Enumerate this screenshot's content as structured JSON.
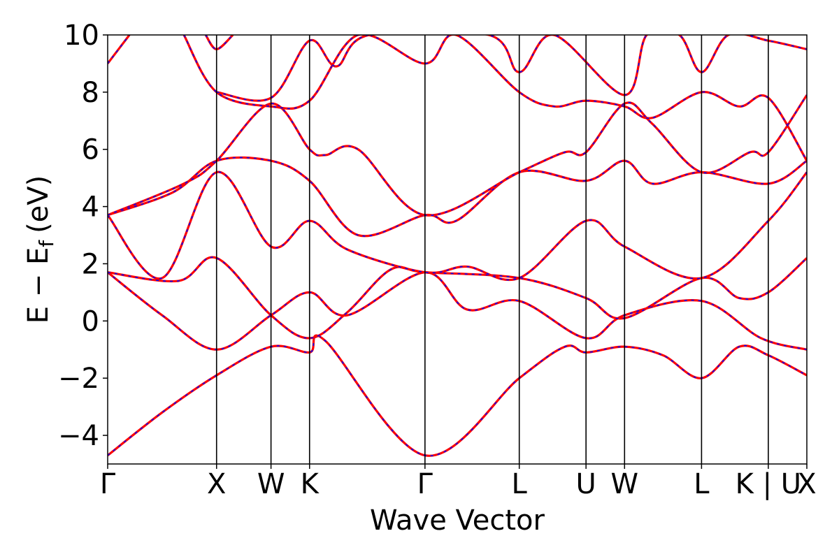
{
  "chart_data": {
    "type": "line",
    "xlabel": "Wave Vector",
    "ylabel": {
      "main": "E − E",
      "subscript": "f",
      "unit": "(eV)"
    },
    "ylim": [
      -5,
      10
    ],
    "yticks": [
      -4,
      -2,
      0,
      2,
      4,
      6,
      8,
      10
    ],
    "ytick_labels": [
      "−4",
      "−2",
      "0",
      "2",
      "4",
      "6",
      "8",
      "10"
    ],
    "high_symmetry_points": [
      {
        "label": "Γ",
        "x": 0.0
      },
      {
        "label": "X",
        "x": 1.0
      },
      {
        "label": "W",
        "x": 1.5
      },
      {
        "label": "K",
        "x": 1.854
      },
      {
        "label": "Γ",
        "x": 2.914
      },
      {
        "label": "L",
        "x": 3.78
      },
      {
        "label": "U",
        "x": 4.393
      },
      {
        "label": "W",
        "x": 4.747
      },
      {
        "label": "L",
        "x": 5.454
      },
      {
        "label": "K | U",
        "x": 6.067
      },
      {
        "label": "X",
        "x": 6.421
      }
    ],
    "vertical_lines_x": [
      1.0,
      1.5,
      1.854,
      2.914,
      3.78,
      4.393,
      4.747,
      5.454,
      6.067
    ],
    "xlim": [
      0,
      6.421
    ],
    "grid": false,
    "series": [
      {
        "color": "#ff0000",
        "dashed_overlay_color": "#0000ff",
        "points": [
          [
            0.0,
            -4.7
          ],
          [
            0.5,
            -3.2
          ],
          [
            1.0,
            -1.9
          ],
          [
            1.5,
            -0.9
          ],
          [
            1.854,
            -1.1
          ],
          [
            2.0,
            -0.7
          ],
          [
            2.914,
            -4.7
          ],
          [
            3.78,
            -2.0
          ],
          [
            4.2,
            -0.9
          ],
          [
            4.393,
            -1.1
          ],
          [
            4.747,
            -0.9
          ],
          [
            5.1,
            -1.2
          ],
          [
            5.454,
            -2.0
          ],
          [
            5.8,
            -0.9
          ],
          [
            6.067,
            -1.2
          ],
          [
            6.421,
            -1.9
          ]
        ]
      },
      {
        "color": "#ff0000",
        "dashed_overlay_color": "#0000ff",
        "points": [
          [
            0.0,
            1.7
          ],
          [
            0.5,
            0.2
          ],
          [
            1.0,
            -1.0
          ],
          [
            1.5,
            0.2
          ],
          [
            1.854,
            1.0
          ],
          [
            2.2,
            0.2
          ],
          [
            2.914,
            1.7
          ],
          [
            3.3,
            0.4
          ],
          [
            3.78,
            0.7
          ],
          [
            4.393,
            -0.6
          ],
          [
            4.747,
            0.2
          ],
          [
            5.454,
            0.7
          ],
          [
            6.0,
            -0.6
          ],
          [
            6.421,
            -1.0
          ]
        ]
      },
      {
        "color": "#ff0000",
        "dashed_overlay_color": "#0000ff",
        "points": [
          [
            0.0,
            1.7
          ],
          [
            0.65,
            1.4
          ],
          [
            1.0,
            2.2
          ],
          [
            1.5,
            0.2
          ],
          [
            1.854,
            -0.6
          ],
          [
            2.2,
            0.3
          ],
          [
            2.6,
            1.8
          ],
          [
            2.914,
            1.7
          ],
          [
            3.78,
            1.5
          ],
          [
            4.393,
            0.8
          ],
          [
            4.747,
            0.1
          ],
          [
            5.454,
            1.5
          ],
          [
            5.8,
            0.8
          ],
          [
            6.067,
            1.0
          ],
          [
            6.421,
            2.2
          ]
        ]
      },
      {
        "color": "#ff0000",
        "dashed_overlay_color": "#0000ff",
        "points": [
          [
            0.0,
            3.7
          ],
          [
            0.5,
            1.5
          ],
          [
            1.0,
            5.2
          ],
          [
            1.5,
            2.6
          ],
          [
            1.854,
            3.5
          ],
          [
            2.2,
            2.5
          ],
          [
            2.914,
            1.7
          ],
          [
            3.3,
            1.9
          ],
          [
            3.78,
            1.5
          ],
          [
            4.393,
            3.5
          ],
          [
            4.747,
            2.6
          ],
          [
            5.454,
            1.5
          ],
          [
            6.067,
            3.5
          ],
          [
            6.421,
            5.2
          ]
        ]
      },
      {
        "color": "#ff0000",
        "dashed_overlay_color": "#0000ff",
        "points": [
          [
            0.0,
            3.7
          ],
          [
            0.6,
            4.5
          ],
          [
            1.0,
            5.6
          ],
          [
            1.5,
            5.6
          ],
          [
            1.854,
            4.9
          ],
          [
            2.3,
            3.0
          ],
          [
            2.914,
            3.7
          ],
          [
            3.2,
            3.5
          ],
          [
            3.78,
            5.2
          ],
          [
            4.393,
            4.9
          ],
          [
            4.747,
            5.6
          ],
          [
            5.0,
            4.8
          ],
          [
            5.454,
            5.2
          ],
          [
            6.067,
            4.8
          ],
          [
            6.421,
            5.6
          ]
        ]
      },
      {
        "color": "#ff0000",
        "dashed_overlay_color": "#0000ff",
        "points": [
          [
            0.0,
            3.7
          ],
          [
            0.7,
            4.8
          ],
          [
            1.0,
            5.6
          ],
          [
            1.5,
            7.6
          ],
          [
            1.854,
            6.0
          ],
          [
            2.0,
            5.8
          ],
          [
            2.3,
            6.0
          ],
          [
            2.914,
            3.7
          ],
          [
            3.78,
            5.2
          ],
          [
            4.2,
            5.9
          ],
          [
            4.393,
            5.9
          ],
          [
            4.747,
            7.6
          ],
          [
            5.0,
            6.9
          ],
          [
            5.454,
            5.2
          ],
          [
            5.9,
            5.9
          ],
          [
            6.067,
            5.9
          ],
          [
            6.421,
            7.9
          ]
        ]
      },
      {
        "color": "#ff0000",
        "dashed_overlay_color": "#0000ff",
        "points": [
          [
            0.7,
            10.0
          ],
          [
            1.0,
            8.0
          ],
          [
            1.5,
            7.5
          ],
          [
            1.854,
            7.7
          ],
          [
            2.3,
            10.0
          ],
          [
            2.914,
            9.0
          ],
          [
            3.2,
            10.0
          ],
          [
            3.78,
            8.0
          ],
          [
            4.1,
            7.5
          ],
          [
            4.393,
            7.7
          ],
          [
            4.747,
            7.5
          ],
          [
            5.0,
            7.1
          ],
          [
            5.454,
            8.0
          ],
          [
            5.8,
            7.5
          ],
          [
            6.067,
            7.8
          ],
          [
            6.421,
            5.6
          ]
        ]
      },
      {
        "color": "#ff0000",
        "dashed_overlay_color": "#0000ff",
        "points": [
          [
            1.0,
            8.0
          ],
          [
            1.5,
            7.8
          ],
          [
            1.854,
            9.8
          ],
          [
            2.1,
            8.9
          ],
          [
            2.4,
            10.0
          ],
          [
            3.5,
            10.0
          ],
          [
            3.78,
            8.7
          ],
          [
            4.1,
            10.0
          ],
          [
            4.747,
            7.9
          ],
          [
            4.95,
            10.0
          ],
          [
            5.25,
            10.0
          ],
          [
            5.454,
            8.7
          ],
          [
            5.7,
            10.0
          ],
          [
            6.067,
            9.8
          ],
          [
            6.421,
            9.5
          ]
        ]
      },
      {
        "color": "#ff0000",
        "dashed_overlay_color": "#0000ff",
        "points": [
          [
            0.0,
            9.0
          ],
          [
            0.2,
            10.0
          ]
        ]
      },
      {
        "color": "#ff0000",
        "dashed_overlay_color": "#0000ff",
        "points": [
          [
            0.9,
            10.0
          ],
          [
            1.0,
            9.5
          ],
          [
            1.15,
            10.0
          ]
        ]
      }
    ]
  }
}
